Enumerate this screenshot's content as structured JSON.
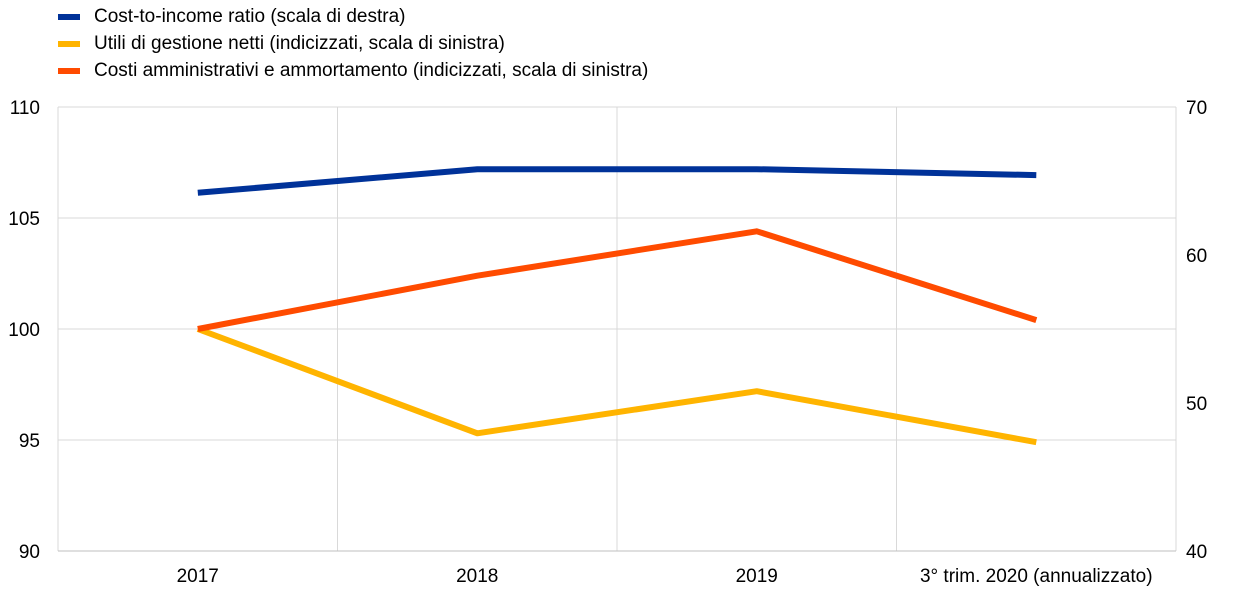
{
  "legend": [
    {
      "label": "Cost-to-income ratio (scala di destra)",
      "color": "#003299"
    },
    {
      "label": "Utili di gestione netti (indicizzati, scala di sinistra)",
      "color": "#FFB400"
    },
    {
      "label": "Costi amministrativi e ammortamento (indicizzati, scala di sinistra)",
      "color": "#FF4B00"
    }
  ],
  "chart_data": {
    "type": "line",
    "categories": [
      "2017",
      "2018",
      "2019",
      "3° trim. 2020 (annualizzato)"
    ],
    "y_left": {
      "min": 90,
      "max": 110,
      "ticks": [
        90,
        95,
        100,
        105,
        110
      ]
    },
    "y_right": {
      "min": 40,
      "max": 70,
      "ticks": [
        40,
        50,
        60,
        70
      ]
    },
    "grid": true,
    "legend_position": "top-left",
    "series": [
      {
        "name": "Cost-to-income ratio (scala di destra)",
        "axis": "right",
        "color": "#003299",
        "values": [
          64.2,
          65.8,
          65.8,
          65.4
        ]
      },
      {
        "name": "Utili di gestione netti (indicizzati, scala di sinistra)",
        "axis": "left",
        "color": "#FFB400",
        "values": [
          100.0,
          95.3,
          97.2,
          94.9
        ]
      },
      {
        "name": "Costi amministrativi e ammortamento (indicizzati, scala di sinistra)",
        "axis": "left",
        "color": "#FF4B00",
        "values": [
          100.0,
          102.4,
          104.4,
          100.4
        ]
      }
    ]
  }
}
